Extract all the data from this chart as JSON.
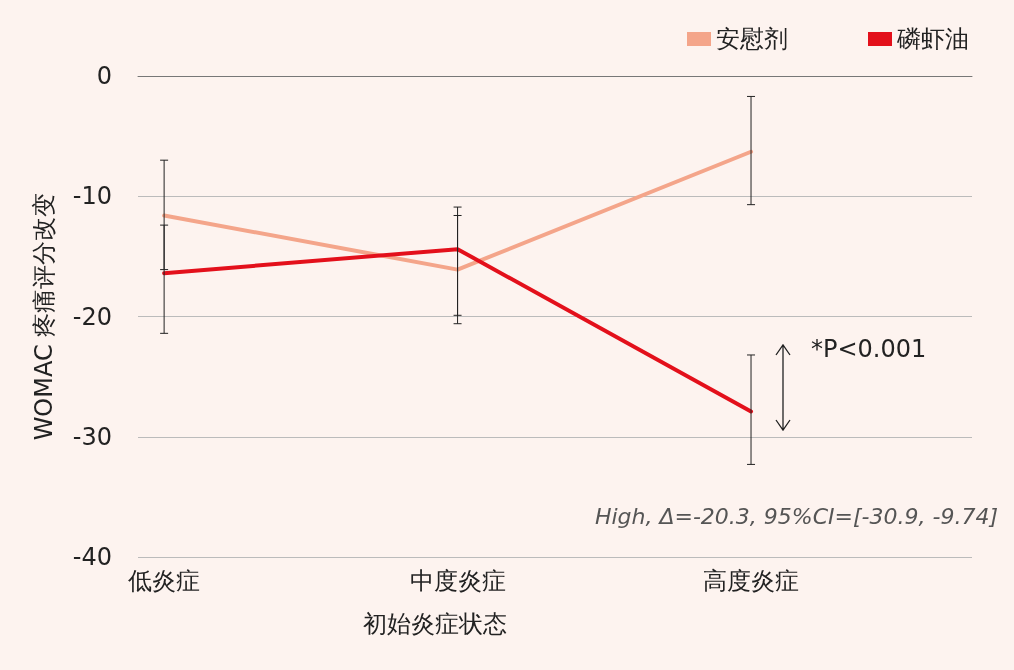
{
  "chart_data": {
    "type": "line",
    "xlabel": "初始炎症状态",
    "ylabel": "WOMAC 疼痛评分改变",
    "categories": [
      "低炎症",
      "中度炎症",
      "高度炎症"
    ],
    "series": [
      {
        "name": "安慰剂",
        "color": "#f4a58a",
        "values": [
          -11.6,
          -16.1,
          -6.3
        ],
        "errors": [
          [
            -16.1,
            -7.0
          ],
          [
            -20.6,
            -11.6
          ],
          [
            -10.7,
            -1.7
          ]
        ]
      },
      {
        "name": "磷虾油",
        "color": "#e3101b",
        "values": [
          -16.4,
          -14.4,
          -27.9
        ],
        "errors": [
          [
            -21.4,
            -12.4
          ],
          [
            -19.9,
            -10.9
          ],
          [
            -32.3,
            -23.2
          ]
        ]
      }
    ],
    "ylim": [
      -40,
      0
    ],
    "yticks": [
      -40,
      -30,
      -20,
      -10,
      0
    ],
    "grid": "y",
    "legend": "top right",
    "marker": "none",
    "line_style": "solid",
    "annotations": [
      "*P<0.001",
      "High, Δ=-20.3, 95%CI=[-30.9, -9.74]"
    ]
  }
}
